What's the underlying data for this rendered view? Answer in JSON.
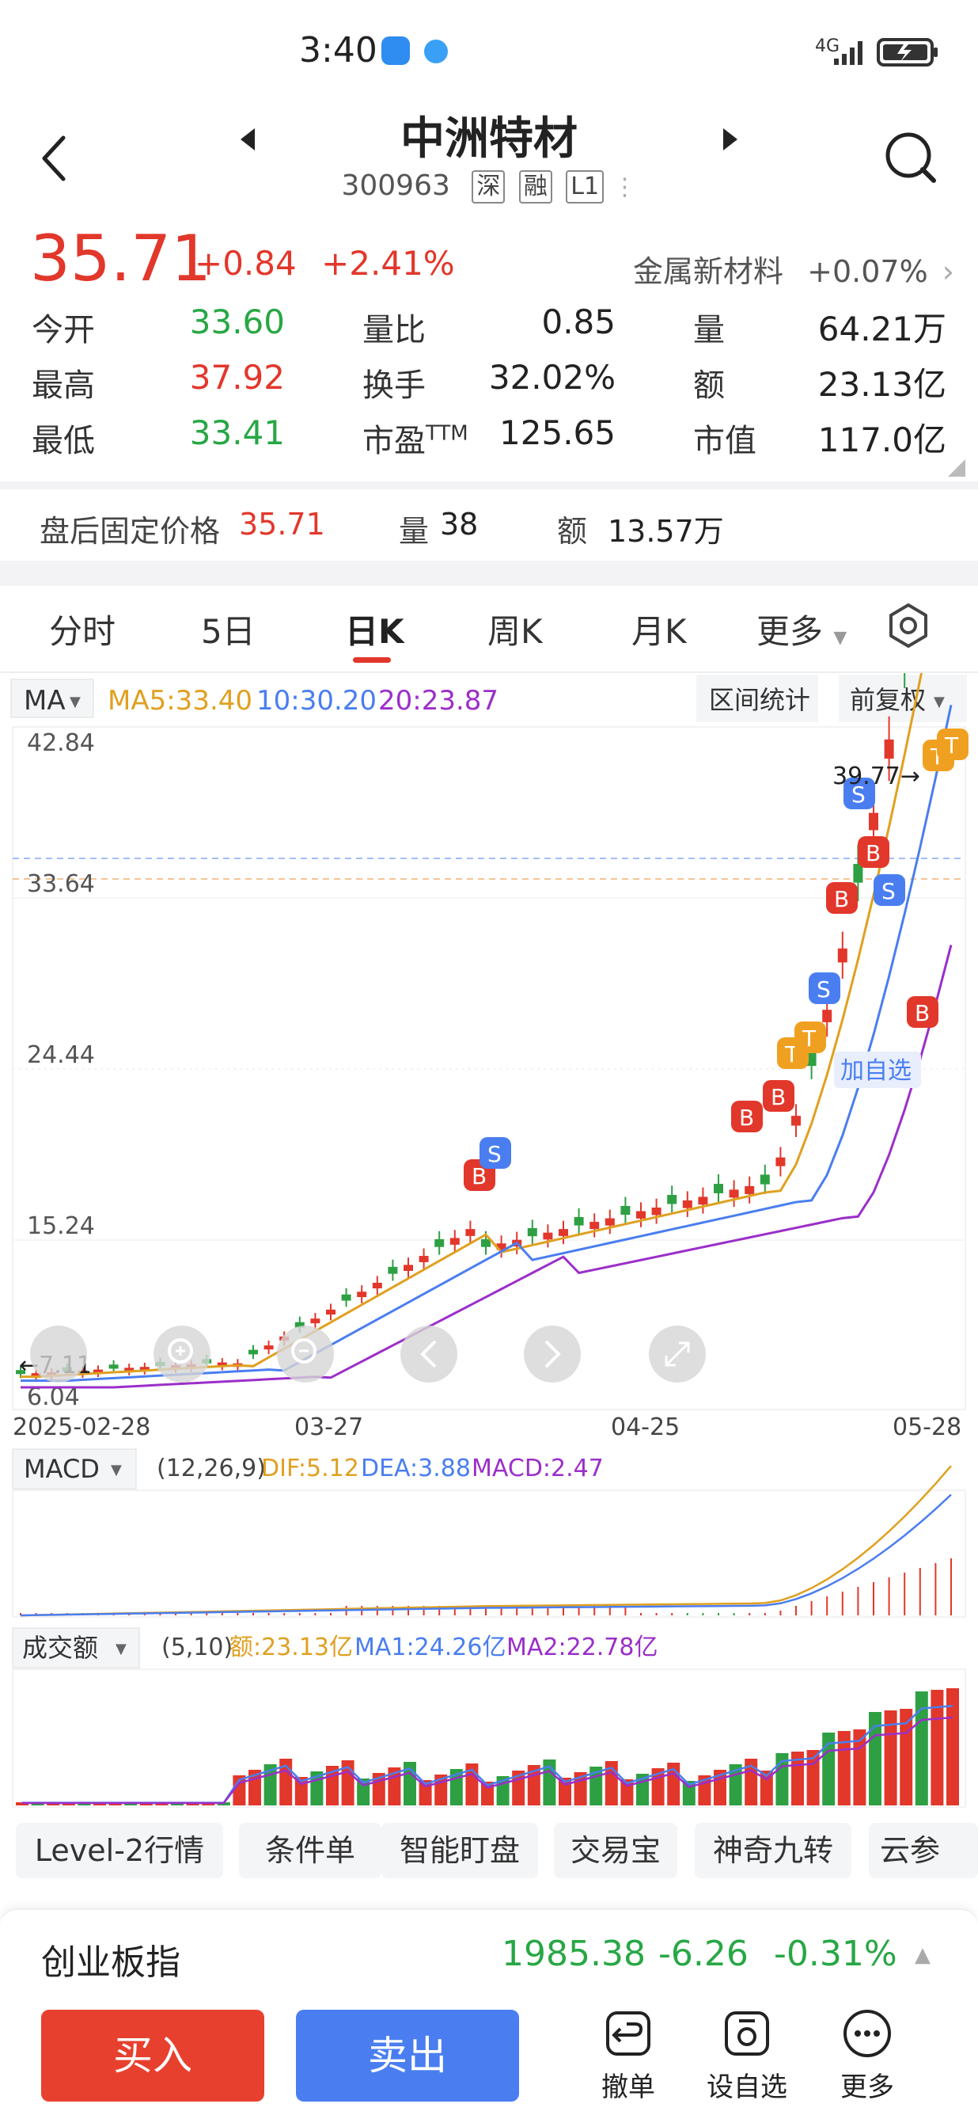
{
  "status_bar": {
    "time": "3:40",
    "network": "4G"
  },
  "header": {
    "title": "中洲特材",
    "code": "300963",
    "tags": [
      "深",
      "融",
      "L1"
    ]
  },
  "quote": {
    "price": "35.71",
    "change": "+0.84",
    "change_pct": "+2.41%",
    "sector_name": "金属新材料",
    "sector_change": "+0.07%",
    "rows": [
      [
        {
          "label": "今开",
          "value": "33.60",
          "color": "green"
        },
        {
          "label": "量比",
          "value": "0.85",
          "color": "black"
        },
        {
          "label": "量",
          "value": "64.21万",
          "color": "black"
        }
      ],
      [
        {
          "label": "最高",
          "value": "37.92",
          "color": "red"
        },
        {
          "label": "换手",
          "value": "32.02%",
          "color": "black"
        },
        {
          "label": "额",
          "value": "23.13亿",
          "color": "black"
        }
      ],
      [
        {
          "label": "最低",
          "value": "33.41",
          "color": "green"
        },
        {
          "label": "市盈",
          "sup": "TTM",
          "value": "125.65",
          "color": "black"
        },
        {
          "label": "市值",
          "value": "117.0亿",
          "color": "black"
        }
      ]
    ]
  },
  "after_hours": {
    "label": "盘后固定价格",
    "price": "35.71",
    "vol_label": "量",
    "vol": "38",
    "amt_label": "额",
    "amt": "13.57万"
  },
  "tabs": [
    "分时",
    "5日",
    "日K",
    "周K",
    "月K",
    "更多"
  ],
  "active_tab": 2,
  "chart": {
    "indicator": "MA",
    "ma5": "MA5:33.40",
    "ma10": "10:30.20",
    "ma20": "20:23.87",
    "interval_stats": "区间统计",
    "adjust": "前复权",
    "y_labels": [
      "42.84",
      "33.64",
      "24.44",
      "15.24",
      "6.04"
    ],
    "high_marker": "39.77→",
    "low_marker": "←7.11",
    "x_labels": [
      "2025-02-28",
      "03-27",
      "04-25",
      "05-28"
    ],
    "add_watch": "加自选",
    "macd_name": "MACD",
    "macd_params": "(12,26,9)",
    "dif": "DIF:5.12",
    "dea": "DEA:3.88",
    "macd": "MACD:2.47",
    "vol_name": "成交额",
    "vol_params": "(5,10)",
    "vol_amt": "额:23.13亿",
    "vol_ma1": "MA1:24.26亿",
    "vol_ma2": "MA2:22.78亿",
    "colors": {
      "up": "#e2372b",
      "down": "#2ea043",
      "ma5": "#e0a020",
      "ma10": "#4a7ef0",
      "ma20": "#9b2fc9"
    }
  },
  "tools": [
    "Level-2行情",
    "条件单",
    "智能盯盘",
    "交易宝",
    "神奇九转",
    "云参"
  ],
  "index": {
    "name": "创业板指",
    "value": "1985.38",
    "change": "-6.26",
    "pct": "-0.31%"
  },
  "actions": {
    "buy": "买入",
    "sell": "卖出",
    "cancel": "撤单",
    "watch": "设自选",
    "more": "更多"
  }
}
